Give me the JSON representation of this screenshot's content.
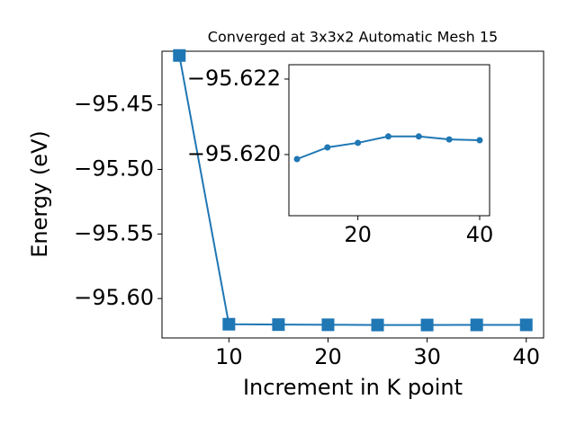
{
  "chart_data": [
    {
      "type": "line",
      "title": "Converged at 3x3x2 Automatic Mesh 15",
      "x_label": "Increment in K point",
      "y_label": "Energy (eV)",
      "marker": "square",
      "x": [
        5,
        10,
        15,
        20,
        25,
        30,
        35,
        40
      ],
      "series": [
        {
          "color": "#1f77b4",
          "values": [
            -95.4118,
            -95.61988,
            -95.62019,
            -95.62031,
            -95.62048,
            -95.62048,
            -95.6204,
            -95.62038
          ]
        }
      ],
      "xlim": [
        3.25,
        41.75
      ],
      "ylim": [
        -95.6305,
        -95.4085
      ],
      "xticks": [
        10,
        20,
        30,
        40
      ],
      "yticks": [
        {
          "value": -95.6,
          "label": "−95.60"
        },
        {
          "value": -95.55,
          "label": "−95.55"
        },
        {
          "value": -95.5,
          "label": "−95.50"
        },
        {
          "value": -95.45,
          "label": "−95.45"
        }
      ]
    },
    {
      "type": "line",
      "marker": "circle",
      "x": [
        10,
        15,
        20,
        25,
        30,
        35,
        40
      ],
      "series": [
        {
          "color": "#1f77b4",
          "values": [
            -95.61988,
            -95.62019,
            -95.62031,
            -95.62048,
            -95.62048,
            -95.6204,
            -95.62038
          ]
        }
      ],
      "xlim": [
        8.67,
        41.63
      ],
      "ylim": [
        -95.61838,
        -95.62238
      ],
      "xticks": [
        20,
        40
      ],
      "yticks": [
        {
          "value": -95.622,
          "label": "−95.622"
        },
        {
          "value": -95.62,
          "label": "−95.620"
        }
      ]
    }
  ]
}
